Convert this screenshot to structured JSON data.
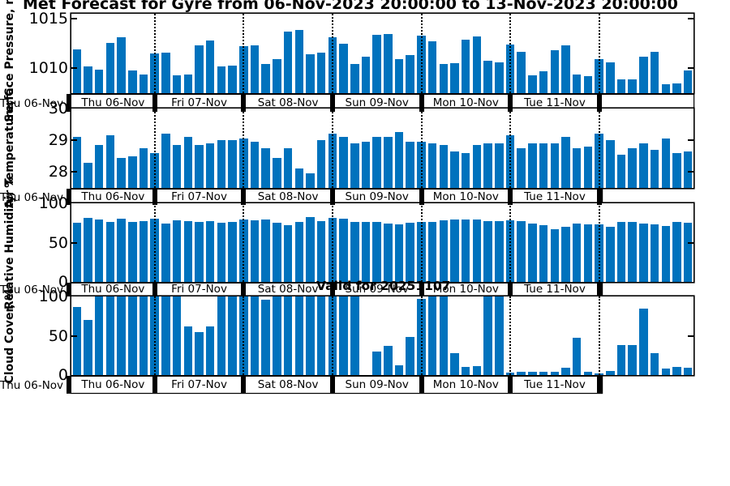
{
  "title": "Met Forecast for Gyre from 06-Nov-2023 20:00:00 to 13-Nov-2023 20:00:00",
  "annotation": "Valid for 20251107",
  "colors": {
    "bar": "#0072BD",
    "axis": "#000000",
    "background": "#ffffff"
  },
  "x_axis": {
    "left_edge_label": "Thu 06-Nov",
    "day_labels": [
      "Thu 06-Nov",
      "Fri 07-Nov",
      "Sat 08-Nov",
      "Sun 09-Nov",
      "Mon 10-Nov",
      "Tue 11-Nov"
    ],
    "trailing_label": ""
  },
  "chart_data": [
    {
      "type": "bar",
      "ylabel": "Surface Pressure, mb",
      "yticks": [
        1010,
        1015
      ],
      "ylim": [
        1007.5,
        1015.5
      ],
      "categories": [
        "Thu 06-Nov",
        "Fri 07-Nov",
        "Sat 08-Nov",
        "Sun 09-Nov",
        "Mon 10-Nov",
        "Tue 11-Nov"
      ],
      "values": [
        1011.9,
        1010.2,
        1009.9,
        1012.6,
        1013.1,
        1009.8,
        1009.4,
        1011.5,
        1011.6,
        1009.3,
        1009.4,
        1012.3,
        1012.8,
        1010.2,
        1010.3,
        1012.2,
        1012.3,
        1010.4,
        1010.9,
        1013.7,
        1013.9,
        1011.4,
        1011.6,
        1013.1,
        1012.5,
        1010.4,
        1011.2,
        1013.4,
        1013.5,
        1010.9,
        1011.3,
        1013.3,
        1012.7,
        1010.4,
        1010.5,
        1012.9,
        1013.2,
        1010.8,
        1010.6,
        1012.4,
        1011.7,
        1009.3,
        1009.7,
        1011.8,
        1012.3,
        1009.4,
        1009.2,
        1010.9,
        1010.6,
        1008.9,
        1008.9,
        1011.2,
        1011.7,
        1008.4,
        1008.5,
        1009.8
      ]
    },
    {
      "type": "bar",
      "ylabel": "Air Temperature, C",
      "yticks": [
        28,
        29,
        30
      ],
      "ylim": [
        27.5,
        30
      ],
      "categories": [
        "Thu 06-Nov",
        "Fri 07-Nov",
        "Sat 08-Nov",
        "Sun 09-Nov",
        "Mon 10-Nov",
        "Tue 11-Nov"
      ],
      "values": [
        29.1,
        28.3,
        28.85,
        29.15,
        28.45,
        28.5,
        28.75,
        28.6,
        29.2,
        28.85,
        29.1,
        28.85,
        28.9,
        29.0,
        29.0,
        29.05,
        28.95,
        28.75,
        28.45,
        28.75,
        28.1,
        27.95,
        29.0,
        29.2,
        29.1,
        28.9,
        28.95,
        29.1,
        29.1,
        29.25,
        28.95,
        28.95,
        28.9,
        28.85,
        28.65,
        28.6,
        28.85,
        28.9,
        28.9,
        29.15,
        28.75,
        28.9,
        28.9,
        28.9,
        29.1,
        28.75,
        28.8,
        29.2,
        29.0,
        28.55,
        28.75,
        28.9,
        28.7,
        29.05,
        28.6,
        28.65
      ]
    },
    {
      "type": "bar",
      "ylabel": "Relative Humidity, %",
      "yticks": [
        0,
        50,
        100
      ],
      "ylim": [
        0,
        100
      ],
      "categories": [
        "Thu 06-Nov",
        "Fri 07-Nov",
        "Sat 08-Nov",
        "Sun 09-Nov",
        "Mon 10-Nov",
        "Tue 11-Nov"
      ],
      "values": [
        75,
        81,
        79,
        76,
        80,
        76,
        77,
        80,
        74,
        78,
        77,
        76,
        77,
        75,
        76,
        79,
        78,
        79,
        75,
        72,
        76,
        82,
        77,
        81,
        80,
        76,
        76,
        76,
        74,
        73,
        75,
        76,
        76,
        78,
        79,
        79,
        79,
        77,
        77,
        78,
        77,
        74,
        72,
        67,
        70,
        74,
        73,
        73,
        70,
        76,
        76,
        74,
        73,
        71,
        76,
        75
      ]
    },
    {
      "type": "bar",
      "ylabel": "Cloud Cover, %",
      "yticks": [
        0,
        50,
        100
      ],
      "ylim": [
        0,
        100
      ],
      "categories": [
        "Thu 06-Nov",
        "Fri 07-Nov",
        "Sat 08-Nov",
        "Sun 09-Nov",
        "Mon 10-Nov",
        "Tue 11-Nov"
      ],
      "values": [
        87,
        70,
        100,
        100,
        100,
        100,
        100,
        100,
        100,
        100,
        62,
        55,
        62,
        100,
        100,
        100,
        100,
        96,
        100,
        100,
        100,
        100,
        100,
        100,
        100,
        100,
        0,
        30,
        37,
        12,
        48,
        97,
        100,
        100,
        28,
        10,
        11,
        100,
        100,
        3,
        4,
        4,
        4,
        4,
        9,
        47,
        4,
        2,
        5,
        38,
        38,
        85,
        28,
        8,
        10,
        9
      ]
    }
  ]
}
